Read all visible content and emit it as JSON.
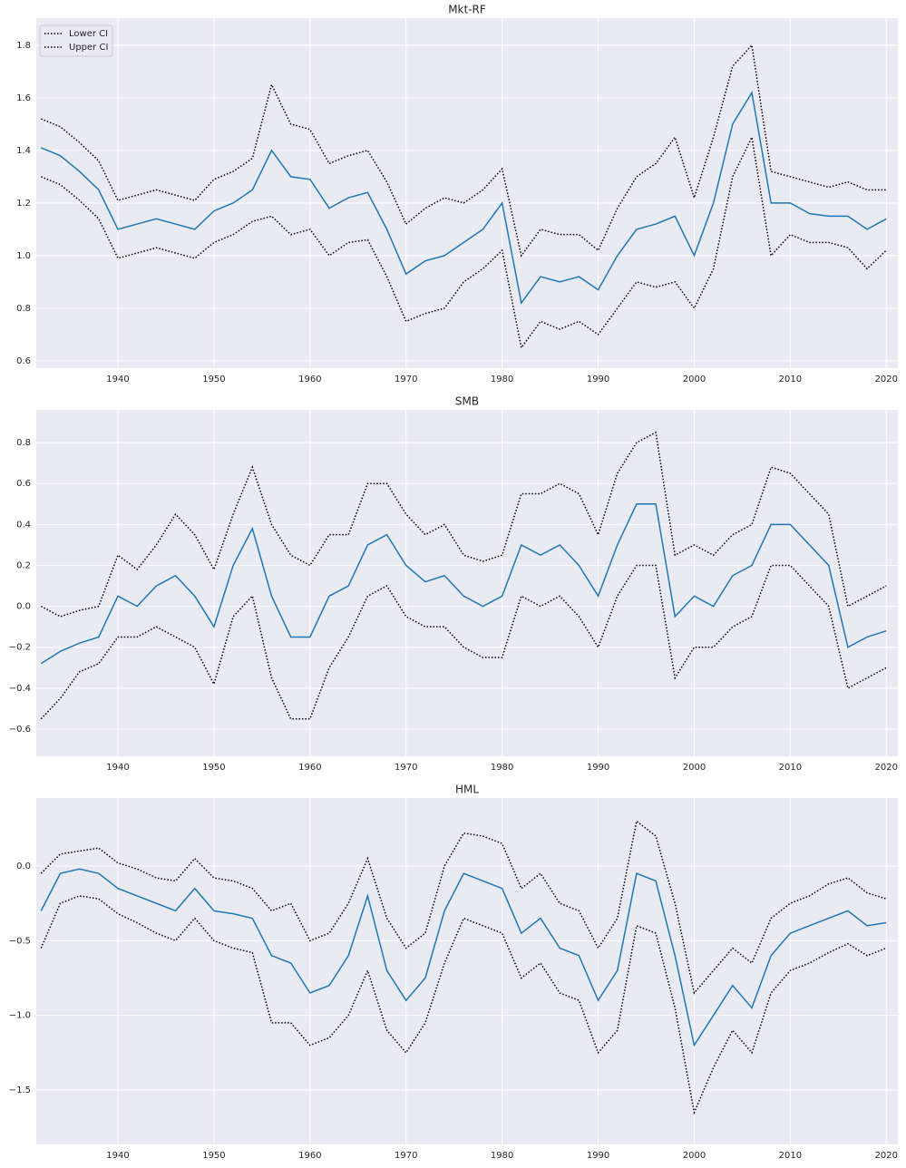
{
  "chart_data": [
    {
      "type": "line",
      "title": "Mkt-RF",
      "x": [
        1932,
        1934,
        1936,
        1938,
        1940,
        1942,
        1944,
        1946,
        1948,
        1950,
        1952,
        1954,
        1956,
        1958,
        1960,
        1962,
        1964,
        1966,
        1968,
        1970,
        1972,
        1974,
        1976,
        1978,
        1980,
        1982,
        1984,
        1986,
        1988,
        1990,
        1992,
        1994,
        1996,
        1998,
        2000,
        2002,
        2004,
        2006,
        2008,
        2010,
        2012,
        2014,
        2016,
        2018,
        2020
      ],
      "series": [
        {
          "color": "#1f77b4",
          "style": "solid",
          "values": [
            1.41,
            1.38,
            1.32,
            1.25,
            1.1,
            1.12,
            1.14,
            1.12,
            1.1,
            1.17,
            1.2,
            1.25,
            1.4,
            1.3,
            1.29,
            1.18,
            1.22,
            1.24,
            1.1,
            0.93,
            0.98,
            1.0,
            1.05,
            1.1,
            1.2,
            0.82,
            0.92,
            0.9,
            0.92,
            0.87,
            1.0,
            1.1,
            1.12,
            1.15,
            1.0,
            1.2,
            1.5,
            1.62,
            1.2,
            1.2,
            1.16,
            1.15,
            1.15,
            1.1,
            1.14
          ]
        },
        {
          "name": "Lower CI",
          "color": "#000000",
          "style": "dotted",
          "values": [
            1.3,
            1.27,
            1.21,
            1.14,
            0.99,
            1.01,
            1.03,
            1.01,
            0.99,
            1.05,
            1.08,
            1.13,
            1.15,
            1.08,
            1.1,
            1.0,
            1.05,
            1.06,
            0.92,
            0.75,
            0.78,
            0.8,
            0.9,
            0.95,
            1.02,
            0.65,
            0.75,
            0.72,
            0.75,
            0.7,
            0.8,
            0.9,
            0.88,
            0.9,
            0.8,
            0.95,
            1.3,
            1.45,
            1.0,
            1.08,
            1.05,
            1.05,
            1.03,
            0.95,
            1.02
          ]
        },
        {
          "name": "Upper CI",
          "color": "#000000",
          "style": "dotted",
          "values": [
            1.52,
            1.49,
            1.43,
            1.36,
            1.21,
            1.23,
            1.25,
            1.23,
            1.21,
            1.29,
            1.32,
            1.37,
            1.65,
            1.5,
            1.48,
            1.35,
            1.38,
            1.4,
            1.28,
            1.12,
            1.18,
            1.22,
            1.2,
            1.25,
            1.33,
            1.0,
            1.1,
            1.08,
            1.08,
            1.02,
            1.18,
            1.3,
            1.35,
            1.45,
            1.22,
            1.45,
            1.72,
            1.8,
            1.32,
            1.3,
            1.28,
            1.26,
            1.28,
            1.25,
            1.25
          ]
        }
      ],
      "xlim": [
        1931.5,
        2021.2
      ],
      "ylim": [
        0.572,
        1.903
      ],
      "xticks": [
        1940,
        1950,
        1960,
        1970,
        1980,
        1990,
        2000,
        2010,
        2020
      ],
      "yticks": [
        0.6,
        0.8,
        {
          "value": 1.0,
          "label": "1.0"
        },
        1.2,
        1.4,
        1.6,
        1.8
      ],
      "grid": true,
      "legend": "upper left"
    },
    {
      "type": "line",
      "title": "SMB",
      "x": [
        1932,
        1934,
        1936,
        1938,
        1940,
        1942,
        1944,
        1946,
        1948,
        1950,
        1952,
        1954,
        1956,
        1958,
        1960,
        1962,
        1964,
        1966,
        1968,
        1970,
        1972,
        1974,
        1976,
        1978,
        1980,
        1982,
        1984,
        1986,
        1988,
        1990,
        1992,
        1994,
        1996,
        1998,
        2000,
        2002,
        2004,
        2006,
        2008,
        2010,
        2012,
        2014,
        2016,
        2018,
        2020
      ],
      "series": [
        {
          "color": "#1f77b4",
          "style": "solid",
          "values": [
            -0.28,
            -0.22,
            -0.18,
            -0.15,
            0.05,
            0.0,
            0.1,
            0.15,
            0.05,
            -0.1,
            0.2,
            0.38,
            0.05,
            -0.15,
            -0.15,
            0.05,
            0.1,
            0.3,
            0.35,
            0.2,
            0.12,
            0.15,
            0.05,
            0.0,
            0.05,
            0.3,
            0.25,
            0.3,
            0.2,
            0.05,
            0.3,
            0.5,
            0.5,
            -0.05,
            0.05,
            0.0,
            0.15,
            0.2,
            0.4,
            0.4,
            0.3,
            0.2,
            -0.2,
            -0.15,
            -0.12
          ]
        },
        {
          "color": "#000000",
          "style": "dotted",
          "values": [
            -0.55,
            -0.45,
            -0.32,
            -0.28,
            -0.15,
            -0.15,
            -0.1,
            -0.15,
            -0.2,
            -0.38,
            -0.05,
            0.05,
            -0.35,
            -0.55,
            -0.55,
            -0.3,
            -0.15,
            0.05,
            0.1,
            -0.05,
            -0.1,
            -0.1,
            -0.2,
            -0.25,
            -0.25,
            0.05,
            0.0,
            0.05,
            -0.05,
            -0.2,
            0.05,
            0.2,
            0.2,
            -0.35,
            -0.2,
            -0.2,
            -0.1,
            -0.05,
            0.2,
            0.2,
            0.1,
            0.0,
            -0.4,
            -0.35,
            -0.3
          ]
        },
        {
          "color": "#000000",
          "style": "dotted",
          "values": [
            0.0,
            -0.05,
            -0.02,
            0.0,
            0.25,
            0.18,
            0.3,
            0.45,
            0.35,
            0.18,
            0.45,
            0.68,
            0.4,
            0.25,
            0.2,
            0.35,
            0.35,
            0.6,
            0.6,
            0.45,
            0.35,
            0.4,
            0.25,
            0.22,
            0.25,
            0.55,
            0.55,
            0.6,
            0.55,
            0.35,
            0.65,
            0.8,
            0.85,
            0.25,
            0.3,
            0.25,
            0.35,
            0.4,
            0.68,
            0.65,
            0.55,
            0.45,
            0.0,
            0.05,
            0.1
          ]
        }
      ],
      "xlim": [
        1931.5,
        2021.2
      ],
      "ylim": [
        -0.733,
        0.96
      ],
      "xticks": [
        1940,
        1950,
        1960,
        1970,
        1980,
        1990,
        2000,
        2010,
        2020
      ],
      "yticks": [
        {
          "value": -0.6,
          "label": "−0.6"
        },
        {
          "value": -0.4,
          "label": "−0.4"
        },
        {
          "value": -0.2,
          "label": "−0.2"
        },
        {
          "value": 0,
          "label": "0.0"
        },
        0.2,
        0.4,
        0.6,
        0.8
      ],
      "grid": true
    },
    {
      "type": "line",
      "title": "HML",
      "x": [
        1932,
        1934,
        1936,
        1938,
        1940,
        1942,
        1944,
        1946,
        1948,
        1950,
        1952,
        1954,
        1956,
        1958,
        1960,
        1962,
        1964,
        1966,
        1968,
        1970,
        1972,
        1974,
        1976,
        1978,
        1980,
        1982,
        1984,
        1986,
        1988,
        1990,
        1992,
        1994,
        1996,
        1998,
        2000,
        2002,
        2004,
        2006,
        2008,
        2010,
        2012,
        2014,
        2016,
        2018,
        2020
      ],
      "series": [
        {
          "color": "#1f77b4",
          "style": "solid",
          "values": [
            -0.3,
            -0.05,
            -0.02,
            -0.05,
            -0.15,
            -0.2,
            -0.25,
            -0.3,
            -0.15,
            -0.3,
            -0.32,
            -0.35,
            -0.6,
            -0.65,
            -0.85,
            -0.8,
            -0.6,
            -0.2,
            -0.7,
            -0.9,
            -0.75,
            -0.3,
            -0.05,
            -0.1,
            -0.15,
            -0.45,
            -0.35,
            -0.55,
            -0.6,
            -0.9,
            -0.7,
            -0.05,
            -0.1,
            -0.6,
            -1.2,
            -1.0,
            -0.8,
            -0.95,
            -0.6,
            -0.45,
            -0.4,
            -0.35,
            -0.3,
            -0.4,
            -0.38
          ]
        },
        {
          "color": "#000000",
          "style": "dotted",
          "values": [
            -0.55,
            -0.25,
            -0.2,
            -0.22,
            -0.32,
            -0.38,
            -0.45,
            -0.5,
            -0.35,
            -0.5,
            -0.55,
            -0.58,
            -1.05,
            -1.05,
            -1.2,
            -1.15,
            -1.0,
            -0.7,
            -1.1,
            -1.25,
            -1.05,
            -0.65,
            -0.35,
            -0.4,
            -0.45,
            -0.75,
            -0.65,
            -0.85,
            -0.9,
            -1.25,
            -1.1,
            -0.4,
            -0.45,
            -0.95,
            -1.65,
            -1.35,
            -1.1,
            -1.25,
            -0.85,
            -0.7,
            -0.65,
            -0.58,
            -0.52,
            -0.6,
            -0.55
          ]
        },
        {
          "color": "#000000",
          "style": "dotted",
          "values": [
            -0.05,
            0.08,
            0.1,
            0.12,
            0.02,
            -0.02,
            -0.08,
            -0.1,
            0.05,
            -0.08,
            -0.1,
            -0.15,
            -0.3,
            -0.25,
            -0.5,
            -0.45,
            -0.25,
            0.05,
            -0.35,
            -0.55,
            -0.45,
            0.0,
            0.22,
            0.2,
            0.15,
            -0.15,
            -0.05,
            -0.25,
            -0.3,
            -0.55,
            -0.35,
            0.3,
            0.2,
            -0.25,
            -0.85,
            -0.7,
            -0.55,
            -0.65,
            -0.35,
            -0.25,
            -0.2,
            -0.12,
            -0.08,
            -0.18,
            -0.22
          ]
        }
      ],
      "xlim": [
        1931.5,
        2021.2
      ],
      "ylim": [
        -1.864,
        0.455
      ],
      "xticks": [
        1940,
        1950,
        1960,
        1970,
        1980,
        1990,
        2000,
        2010,
        2020
      ],
      "yticks": [
        {
          "value": -1.5,
          "label": "−1.5"
        },
        {
          "value": -1.0,
          "label": "−1.0"
        },
        {
          "value": -0.5,
          "label": "−0.5"
        },
        {
          "value": 0,
          "label": "0.0"
        }
      ],
      "grid": true
    }
  ]
}
